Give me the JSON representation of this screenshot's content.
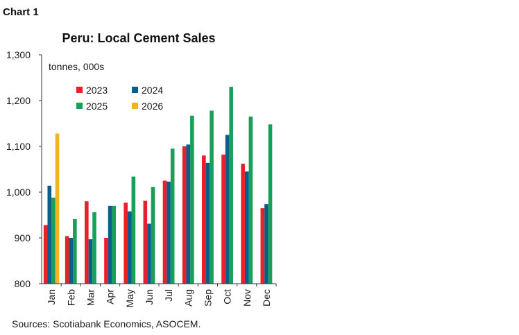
{
  "chart_label": "Chart 1",
  "source": "Sources: Scotiabank Economics, ASOCEM.",
  "colors": {
    "2023": "#e8202a",
    "2024": "#0b5d8c",
    "2025": "#18a05a",
    "2026": "#f5b324",
    "axis": "#333333"
  },
  "chart_data": {
    "type": "bar",
    "title": "Peru: Local Cement Sales",
    "ylabel": "tonnes, 000s",
    "xlabel": "",
    "ylim": [
      800,
      1300
    ],
    "yticks": [
      800,
      900,
      "1,000",
      "1,100",
      "1,200",
      "1,300"
    ],
    "ytick_values": [
      800,
      900,
      1000,
      1100,
      1200,
      1300
    ],
    "grid": false,
    "legend_position": "top-left",
    "categories": [
      "Jan",
      "Feb",
      "Mar",
      "Apr",
      "May",
      "Jun",
      "Jul",
      "Aug",
      "Sep",
      "Oct",
      "Nov",
      "Dec"
    ],
    "series": [
      {
        "name": "2023",
        "values": [
          928,
          904,
          980,
          900,
          977,
          981,
          1025,
          1100,
          1080,
          1082,
          1062,
          965
        ]
      },
      {
        "name": "2024",
        "values": [
          1014,
          900,
          897,
          970,
          958,
          931,
          1023,
          1104,
          1064,
          1125,
          1045,
          974
        ]
      },
      {
        "name": "2025",
        "values": [
          988,
          941,
          956,
          970,
          1034,
          1011,
          1095,
          1167,
          1178,
          1230,
          1165,
          1148
        ]
      },
      {
        "name": "2026",
        "values": [
          1128,
          null,
          null,
          null,
          null,
          null,
          null,
          null,
          null,
          null,
          null,
          null
        ]
      }
    ]
  }
}
